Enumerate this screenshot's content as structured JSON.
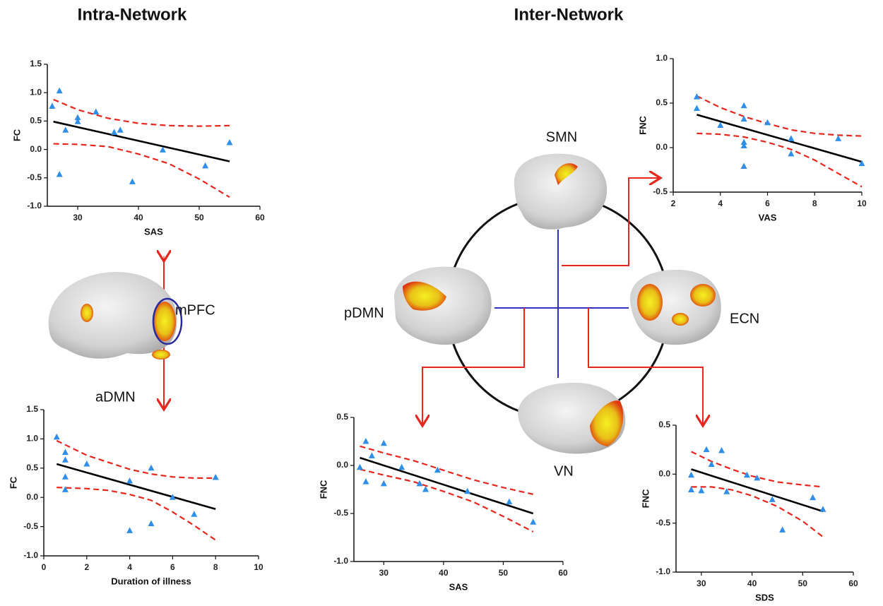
{
  "headings": {
    "intra": "Intra-Network",
    "inter": "Inter-Network"
  },
  "labels": {
    "mpfc": "mPFC",
    "admn": "aDMN",
    "smn": "SMN",
    "pdmn": "pDMN",
    "ecn": "ECN",
    "vn": "VN"
  },
  "chart_data": [
    {
      "type": "scatter",
      "xlabel": "SAS",
      "ylabel": "FC",
      "xlim": [
        25,
        60
      ],
      "ylim": [
        -1.0,
        1.5
      ],
      "xticks": [
        30,
        40,
        50,
        60
      ],
      "yticks": [
        1.5,
        {
          "value": 1.0,
          "label": "1.0"
        },
        0.5,
        {
          "value": 0.0,
          "label": "0.0"
        },
        -0.5,
        {
          "value": -1.0,
          "label": "-1.0"
        }
      ],
      "points": {
        "color": "#2f8fe8",
        "x": [
          25.8,
          27,
          28,
          30,
          30,
          33,
          36,
          37,
          27,
          39,
          44,
          51,
          55
        ],
        "y": [
          0.76,
          1.03,
          0.34,
          0.56,
          0.49,
          0.66,
          0.3,
          0.34,
          -0.44,
          -0.57,
          -0.01,
          -0.29,
          0.12
        ]
      },
      "fit": {
        "color": "#000000",
        "x": [
          26,
          55
        ],
        "y": [
          0.49,
          -0.21
        ]
      },
      "ci_upper": {
        "color": "#e8261e",
        "x": [
          26,
          30,
          35,
          40,
          45,
          50,
          55
        ],
        "y": [
          0.88,
          0.7,
          0.55,
          0.46,
          0.42,
          0.41,
          0.42
        ]
      },
      "ci_lower": {
        "color": "#e8261e",
        "x": [
          26,
          30,
          35,
          40,
          45,
          50,
          55
        ],
        "y": [
          0.1,
          0.09,
          0.05,
          -0.08,
          -0.25,
          -0.52,
          -0.84
        ]
      }
    },
    {
      "type": "scatter",
      "xlabel": "Duration of illness",
      "ylabel": "FC",
      "xlim": [
        0,
        10
      ],
      "ylim": [
        -1.0,
        1.5
      ],
      "xticks": [
        0,
        2,
        4,
        6,
        8,
        10
      ],
      "yticks": [
        1.5,
        {
          "value": 1.0,
          "label": "1.0"
        },
        0.5,
        {
          "value": 0.0,
          "label": "0.0"
        },
        -0.5,
        {
          "value": -1.0,
          "label": "-1.0"
        }
      ],
      "points": {
        "color": "#2f8fe8",
        "x": [
          0.6,
          1,
          1,
          1,
          1,
          2,
          4,
          4,
          5,
          5,
          6,
          7,
          8
        ],
        "y": [
          1.03,
          0.77,
          0.64,
          0.35,
          0.13,
          0.57,
          0.28,
          -0.57,
          0.5,
          -0.45,
          0.0,
          -0.29,
          0.34
        ]
      },
      "fit": {
        "color": "#000000",
        "x": [
          0.6,
          8
        ],
        "y": [
          0.57,
          -0.2
        ]
      },
      "ci_upper": {
        "color": "#e8261e",
        "x": [
          0.6,
          2,
          3,
          4,
          5,
          6,
          7,
          8
        ],
        "y": [
          0.97,
          0.72,
          0.6,
          0.48,
          0.4,
          0.35,
          0.33,
          0.33
        ]
      },
      "ci_lower": {
        "color": "#e8261e",
        "x": [
          0.6,
          2,
          3,
          4,
          5,
          6,
          7,
          8
        ],
        "y": [
          0.17,
          0.15,
          0.12,
          0.05,
          -0.05,
          -0.25,
          -0.48,
          -0.73
        ]
      }
    },
    {
      "type": "scatter",
      "xlabel": "VAS",
      "ylabel": "FNC",
      "xlim": [
        2,
        10
      ],
      "ylim": [
        -0.5,
        1.0
      ],
      "xticks": [
        2,
        4,
        6,
        8,
        10
      ],
      "yticks": [
        {
          "value": 1.0,
          "label": "1.0"
        },
        0.5,
        {
          "value": 0.0,
          "label": "0.0"
        },
        -0.5
      ],
      "points": {
        "color": "#2f8fe8",
        "x": [
          3,
          3,
          4,
          5,
          5,
          5,
          5,
          5,
          6,
          7,
          7,
          9,
          10
        ],
        "y": [
          0.57,
          0.44,
          0.25,
          0.47,
          0.32,
          0.06,
          0.02,
          -0.21,
          0.28,
          0.1,
          -0.07,
          0.1,
          -0.18
        ]
      },
      "fit": {
        "color": "#000000",
        "x": [
          3,
          10
        ],
        "y": [
          0.37,
          -0.16
        ]
      },
      "ci_upper": {
        "color": "#e8261e",
        "x": [
          3,
          4,
          5,
          6,
          7,
          8,
          9,
          10
        ],
        "y": [
          0.58,
          0.45,
          0.35,
          0.27,
          0.2,
          0.16,
          0.14,
          0.13
        ]
      },
      "ci_lower": {
        "color": "#e8261e",
        "x": [
          3,
          4,
          5,
          6,
          7,
          8,
          9,
          10
        ],
        "y": [
          0.16,
          0.15,
          0.12,
          0.06,
          -0.02,
          -0.14,
          -0.29,
          -0.44
        ]
      }
    },
    {
      "type": "scatter",
      "xlabel": "SAS",
      "ylabel": "FNC",
      "xlim": [
        25,
        60
      ],
      "ylim": [
        -1.0,
        0.5
      ],
      "xticks": [
        30,
        40,
        50,
        60
      ],
      "yticks": [
        0.5,
        {
          "value": 0.0,
          "label": "0.0"
        },
        -0.5,
        {
          "value": -1.0,
          "label": "-1.0"
        }
      ],
      "points": {
        "color": "#2f8fe8",
        "x": [
          26,
          27,
          27,
          28,
          30,
          30,
          33,
          36,
          37,
          39,
          44,
          51,
          55
        ],
        "y": [
          -0.02,
          0.25,
          -0.17,
          0.1,
          0.23,
          -0.19,
          -0.02,
          -0.19,
          -0.25,
          -0.05,
          -0.27,
          -0.38,
          -0.59
        ]
      },
      "fit": {
        "color": "#000000",
        "x": [
          26,
          55
        ],
        "y": [
          0.08,
          -0.5
        ]
      },
      "ci_upper": {
        "color": "#e8261e",
        "x": [
          26,
          30,
          35,
          40,
          45,
          50,
          55
        ],
        "y": [
          0.2,
          0.13,
          0.05,
          -0.05,
          -0.15,
          -0.23,
          -0.3
        ]
      },
      "ci_lower": {
        "color": "#e8261e",
        "x": [
          26,
          30,
          35,
          40,
          45,
          50,
          55
        ],
        "y": [
          -0.04,
          -0.1,
          -0.17,
          -0.27,
          -0.38,
          -0.53,
          -0.69
        ]
      }
    },
    {
      "type": "scatter",
      "xlabel": "SDS",
      "ylabel": "FNC",
      "xlim": [
        25,
        60
      ],
      "ylim": [
        -1.0,
        0.5
      ],
      "xticks": [
        30,
        40,
        50,
        60
      ],
      "yticks": [
        0.5,
        {
          "value": 0.0,
          "label": "0.0"
        },
        -0.5,
        {
          "value": -1.0,
          "label": "-1.0"
        }
      ],
      "points": {
        "color": "#2f8fe8",
        "x": [
          28,
          28,
          30,
          31,
          32,
          34,
          35,
          39,
          41,
          44,
          46,
          52,
          54
        ],
        "y": [
          -0.01,
          -0.16,
          -0.17,
          0.25,
          0.1,
          0.24,
          -0.18,
          -0.01,
          -0.04,
          -0.26,
          -0.57,
          -0.24,
          -0.36
        ]
      },
      "fit": {
        "color": "#000000",
        "x": [
          28,
          54
        ],
        "y": [
          0.05,
          -0.38
        ]
      },
      "ci_upper": {
        "color": "#e8261e",
        "x": [
          28,
          32,
          36,
          40,
          45,
          50,
          54
        ],
        "y": [
          0.23,
          0.13,
          0.05,
          -0.02,
          -0.08,
          -0.11,
          -0.13
        ]
      },
      "ci_lower": {
        "color": "#e8261e",
        "x": [
          28,
          32,
          36,
          40,
          45,
          50,
          54
        ],
        "y": [
          -0.13,
          -0.13,
          -0.16,
          -0.22,
          -0.33,
          -0.48,
          -0.64
        ]
      }
    }
  ]
}
